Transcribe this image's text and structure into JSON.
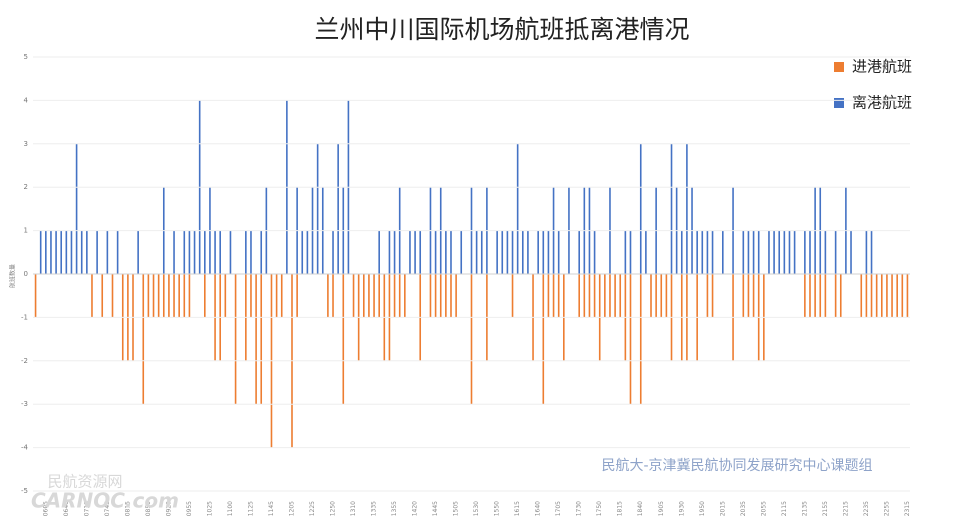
{
  "chart_data": {
    "type": "bar",
    "title": "兰州中川国际机场航班抵离港情况",
    "y_label": "航班数量",
    "watermark": "民航大-京津冀民航协同发展研究中心课题组",
    "source_mark": [
      "民航资源网",
      "CARNOC.com"
    ],
    "categories": [
      null,
      null,
      "0605",
      null,
      null,
      null,
      "0640",
      null,
      null,
      null,
      "0710",
      null,
      null,
      null,
      "0745",
      null,
      null,
      null,
      "0815",
      null,
      null,
      null,
      "0850",
      null,
      null,
      null,
      "0920",
      null,
      null,
      null,
      "0955",
      null,
      null,
      null,
      "1025",
      null,
      null,
      null,
      "1100",
      null,
      null,
      null,
      "1125",
      null,
      null,
      null,
      "1145",
      null,
      null,
      null,
      "1205",
      null,
      null,
      null,
      "1225",
      null,
      null,
      null,
      "1250",
      null,
      null,
      null,
      "1310",
      null,
      null,
      null,
      "1335",
      null,
      null,
      null,
      "1355",
      null,
      null,
      null,
      "1420",
      null,
      null,
      null,
      "1445",
      null,
      null,
      null,
      "1505",
      null,
      null,
      null,
      "1530",
      null,
      null,
      null,
      "1550",
      null,
      null,
      null,
      "1615",
      null,
      null,
      null,
      "1640",
      null,
      null,
      null,
      "1705",
      null,
      null,
      null,
      "1730",
      null,
      null,
      null,
      "1750",
      null,
      null,
      null,
      "1815",
      null,
      null,
      null,
      "1840",
      null,
      null,
      null,
      "1905",
      null,
      null,
      null,
      "1930",
      null,
      null,
      null,
      "1950",
      null,
      null,
      null,
      "2015",
      null,
      null,
      null,
      "2035",
      null,
      null,
      null,
      "2055",
      null,
      null,
      null,
      "2115",
      null,
      null,
      null,
      "2135",
      null,
      null,
      null,
      "2155",
      null,
      null,
      null,
      "2215",
      null,
      null,
      null,
      "2235",
      null,
      null,
      null,
      "2255",
      null,
      null,
      null,
      "2315"
    ],
    "series": [
      {
        "name": "进港航班",
        "color": "#ed7d31",
        "values": [
          -1,
          0,
          0,
          0,
          0,
          0,
          0,
          0,
          0,
          0,
          0,
          -1,
          0,
          -1,
          0,
          -1,
          0,
          -2,
          -2,
          -2,
          0,
          -3,
          -1,
          -1,
          -1,
          -1,
          -1,
          -1,
          -1,
          -1,
          -1,
          0,
          0,
          -1,
          0,
          -2,
          -2,
          -1,
          0,
          -3,
          0,
          -2,
          -1,
          -3,
          -3,
          0,
          -4,
          -1,
          -1,
          0,
          -4,
          -1,
          0,
          0,
          0,
          0,
          0,
          -1,
          -1,
          0,
          -3,
          0,
          -1,
          -2,
          -1,
          -1,
          -1,
          -1,
          -2,
          -2,
          -1,
          -1,
          -1,
          0,
          0,
          -2,
          0,
          -1,
          -1,
          -1,
          -1,
          -1,
          -1,
          0,
          0,
          -3,
          0,
          0,
          -2,
          0,
          0,
          0,
          0,
          -1,
          0,
          0,
          0,
          -2,
          0,
          -3,
          -1,
          -1,
          -1,
          -2,
          0,
          0,
          -1,
          -1,
          -1,
          -1,
          -2,
          -1,
          -1,
          -1,
          -1,
          -2,
          -3,
          0,
          -3,
          0,
          -1,
          -1,
          -1,
          -1,
          -2,
          0,
          -2,
          -2,
          0,
          -2,
          0,
          -1,
          -1,
          0,
          0,
          0,
          -2,
          0,
          -1,
          -1,
          -1,
          -2,
          -2,
          0,
          0,
          0,
          0,
          0,
          0,
          0,
          -1,
          -1,
          -1,
          -1,
          -1,
          0,
          -1,
          -1,
          0,
          0,
          0,
          -1,
          -1,
          -1,
          -1,
          -1,
          -1,
          -1,
          -1,
          -1,
          -1
        ]
      },
      {
        "name": "离港航班",
        "color": "#4472c4",
        "values": [
          0,
          1,
          1,
          1,
          1,
          1,
          1,
          1,
          3,
          1,
          1,
          0,
          1,
          0,
          1,
          0,
          1,
          0,
          0,
          0,
          1,
          0,
          0,
          0,
          0,
          2,
          0,
          1,
          0,
          1,
          1,
          1,
          4,
          1,
          2,
          1,
          1,
          0,
          1,
          0,
          0,
          1,
          1,
          0,
          1,
          2,
          0,
          0,
          0,
          4,
          0,
          2,
          1,
          1,
          2,
          3,
          2,
          0,
          1,
          3,
          2,
          4,
          0,
          0,
          0,
          0,
          0,
          1,
          0,
          1,
          1,
          2,
          0,
          1,
          1,
          1,
          0,
          2,
          1,
          2,
          1,
          1,
          0,
          1,
          0,
          2,
          1,
          1,
          2,
          0,
          1,
          1,
          1,
          1,
          3,
          1,
          1,
          0,
          1,
          1,
          1,
          2,
          1,
          0,
          2,
          0,
          1,
          2,
          2,
          1,
          0,
          0,
          2,
          0,
          0,
          1,
          1,
          0,
          3,
          1,
          0,
          2,
          0,
          0,
          3,
          2,
          1,
          3,
          2,
          1,
          1,
          1,
          1,
          0,
          1,
          0,
          2,
          0,
          1,
          1,
          1,
          1,
          0,
          1,
          1,
          1,
          1,
          1,
          1,
          0,
          1,
          1,
          2,
          2,
          1,
          0,
          1,
          0,
          2,
          1,
          0,
          0,
          1,
          1,
          0,
          0,
          0,
          0,
          0,
          0,
          0
        ]
      }
    ],
    "ylim": [
      -5,
      5
    ],
    "yticks": [
      -5,
      -4,
      -3,
      -2,
      -1,
      0,
      1,
      2,
      3,
      4,
      5
    ],
    "grid": true,
    "legend": "top-right"
  }
}
